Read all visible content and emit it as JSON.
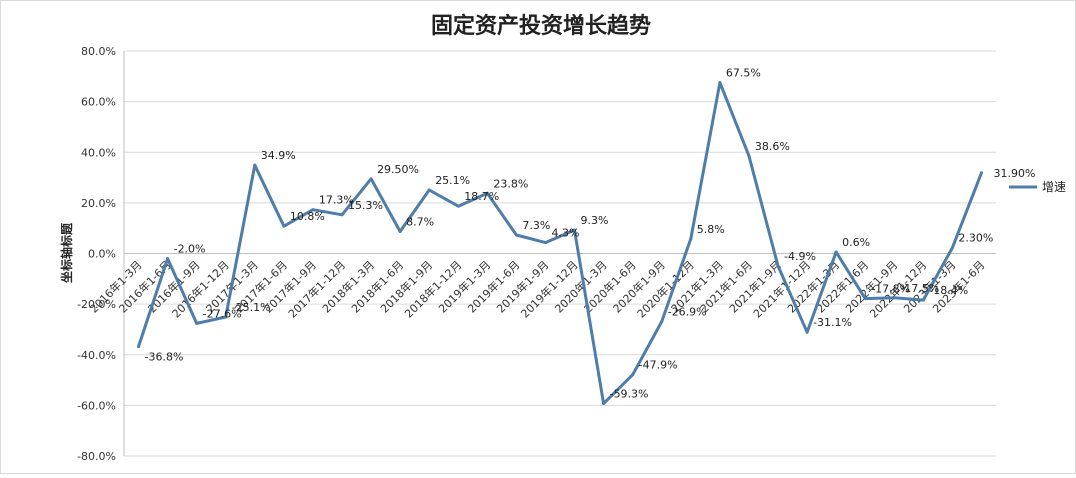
{
  "chart_data": {
    "type": "line",
    "title": "固定资产投资增长趋势",
    "ylabel": "坐标轴标题",
    "xlabel": "",
    "ylim": [
      -80,
      80
    ],
    "ytick_step": 20,
    "ytick_labels": [
      "80.0%",
      "60.0%",
      "40.0%",
      "20.0%",
      "0.0%",
      "-20.0%",
      "-40.0%",
      "-60.0%",
      "-80.0%"
    ],
    "grid": true,
    "legend": "right",
    "categories": [
      "2016年1-3月",
      "2016年1-6月",
      "2016年1-9月",
      "2016年1-12月",
      "2017年1-3月",
      "2017年1-6月",
      "2017年1-9月",
      "2017年1-12月",
      "2018年1-3月",
      "2018年1-6月",
      "2018年1-9月",
      "2018年1-12月",
      "2019年1-3月",
      "2019年1-6月",
      "2019年1-9月",
      "2019年1-12月",
      "2020年1-3月",
      "2020年1-6月",
      "2020年1-9月",
      "2020年1-12月",
      "2021年1-3月",
      "2021年1-6月",
      "2021年1-9月",
      "2021年1-12月",
      "2022年1-3月",
      "2022年1-6月",
      "2022年1-9月",
      "2022年1-12月",
      "2023年1-3月",
      "2023年1-6月"
    ],
    "series": [
      {
        "name": "增速",
        "color": "#4f7da9",
        "values": [
          -36.8,
          -2.0,
          -27.6,
          -25.1,
          34.9,
          10.8,
          17.3,
          15.3,
          29.5,
          8.7,
          25.1,
          18.7,
          23.8,
          7.3,
          4.3,
          9.3,
          -59.3,
          -47.9,
          -26.9,
          5.8,
          67.5,
          38.6,
          -4.9,
          -31.1,
          0.6,
          -17.8,
          -17.5,
          -18.4,
          2.3,
          31.9
        ],
        "labels": [
          "-36.8%",
          "-2.0%",
          "-27.6%",
          "-25.1%",
          "34.9%",
          "10.8%",
          "17.3%",
          "15.3%",
          "29.50%",
          "8.7%",
          "25.1%",
          "18.7%",
          "23.8%",
          "7.3%",
          "4.3%",
          "9.3%",
          "-59.3%",
          "-47.9%",
          "-26.9%",
          "5.8%",
          "67.5%",
          "38.6%",
          "-4.9%",
          "-31.1%",
          "0.6%",
          "-17.8%",
          "-17.5%",
          "-18.4%",
          "2.30%",
          "31.90%"
        ]
      }
    ]
  }
}
